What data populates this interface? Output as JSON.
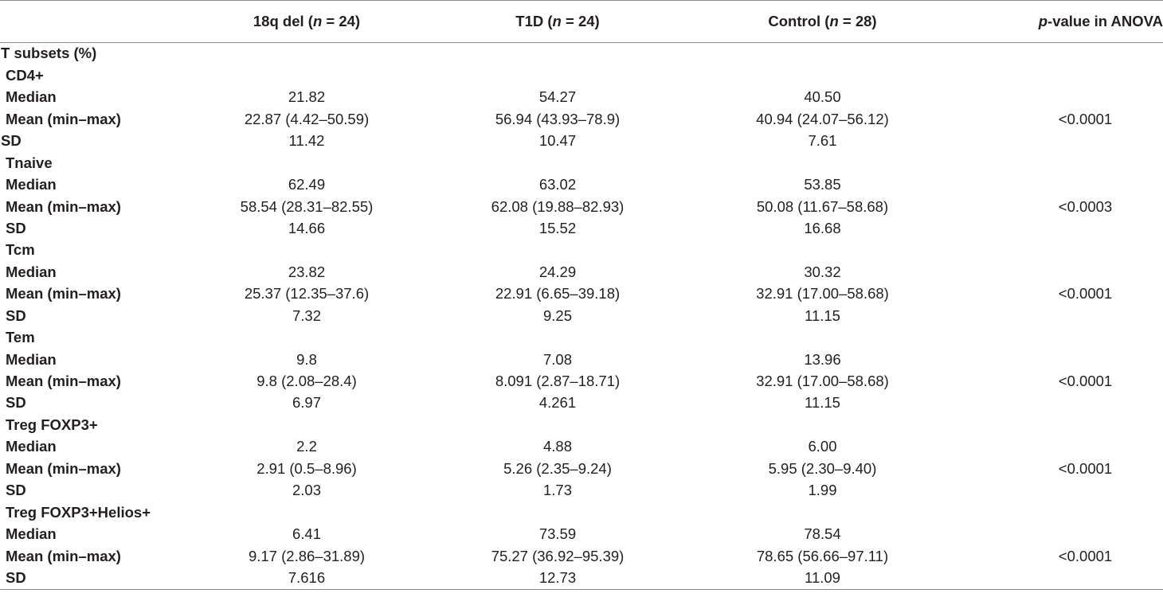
{
  "header": {
    "col_a_prefix": "18q del (",
    "col_b_prefix": "T1D (",
    "col_c_prefix": "Control (",
    "n_symbol": "n",
    "col_a_n": " = 24)",
    "col_b_n": " = 24)",
    "col_c_n": " = 28)",
    "p_symbol": "p",
    "p_suffix": "-value in ANOVA"
  },
  "section_title": "T subsets (%)",
  "row_labels": {
    "median": "Median",
    "mean": "Mean (min–max)",
    "sd": "SD"
  },
  "groups": [
    {
      "name": "CD4+",
      "median": [
        "21.82",
        "54.27",
        "40.50"
      ],
      "mean": [
        "22.87 (4.42–50.59)",
        "56.94 (43.93–78.9)",
        "40.94 (24.07–56.12)"
      ],
      "sd": [
        "11.42",
        "10.47",
        "7.61"
      ],
      "p": "<0.0001"
    },
    {
      "name": "Tnaive",
      "median": [
        "62.49",
        "63.02",
        "53.85"
      ],
      "mean": [
        "58.54 (28.31–82.55)",
        "62.08 (19.88–82.93)",
        "50.08 (11.67–58.68)"
      ],
      "sd": [
        "14.66",
        "15.52",
        "16.68"
      ],
      "p": "<0.0003"
    },
    {
      "name": "Tcm",
      "median": [
        "23.82",
        "24.29",
        "30.32"
      ],
      "mean": [
        "25.37 (12.35–37.6)",
        "22.91 (6.65–39.18)",
        "32.91 (17.00–58.68)"
      ],
      "sd": [
        "7.32",
        "9.25",
        "11.15"
      ],
      "p": "<0.0001"
    },
    {
      "name": "Tem",
      "median": [
        "9.8",
        "7.08",
        "13.96"
      ],
      "mean": [
        "9.8 (2.08–28.4)",
        "8.091 (2.87–18.71)",
        "32.91 (17.00–58.68)"
      ],
      "sd": [
        "6.97",
        "4.261",
        "11.15"
      ],
      "p": "<0.0001"
    },
    {
      "name": "Treg FOXP3+",
      "median": [
        "2.2",
        "4.88",
        "6.00"
      ],
      "mean": [
        "2.91 (0.5–8.96)",
        "5.26 (2.35–9.24)",
        "5.95 (2.30–9.40)"
      ],
      "sd": [
        "2.03",
        "1.73",
        "1.99"
      ],
      "p": "<0.0001"
    },
    {
      "name": "Treg FOXP3+Helios+",
      "median": [
        "6.41",
        "73.59",
        "78.54"
      ],
      "mean": [
        "9.17 (2.86–31.89)",
        "75.27 (36.92–95.39)",
        "78.65 (56.66–97.11)"
      ],
      "sd": [
        "7.616",
        "12.73",
        "11.09"
      ],
      "p": "<0.0001"
    }
  ]
}
